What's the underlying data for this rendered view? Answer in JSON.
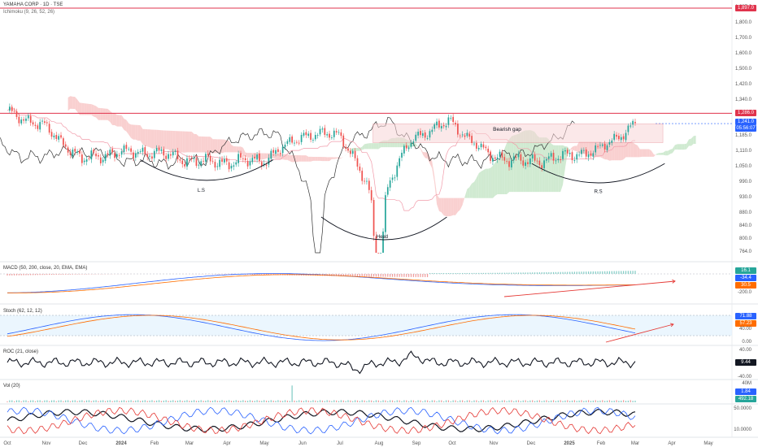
{
  "header": {
    "title": "YAMAHA CORP · 1D · TSE",
    "indicator": "Ichimoku (9, 26, 52, 26)"
  },
  "colors": {
    "up": "#26a69a",
    "down": "#ef5350",
    "resistance": "#e0334c",
    "cloud_bull": "#c8e6c9",
    "cloud_bear": "#f8c8c8",
    "gap_fill": "#f9d6d8"
  },
  "price_pane": {
    "y_ticks": [
      "1,897.0",
      "1,800.0",
      "1,700.0",
      "1,600.0",
      "1,500.0",
      "1,420.0",
      "1,340.0",
      "1,185.0",
      "1,110.0",
      "1,050.0",
      "990.0",
      "930.0",
      "880.0",
      "840.0",
      "800.0",
      "764.0"
    ],
    "price_tags": {
      "top_line": "1,897.0",
      "resistance": "1,286.0",
      "last": "1,241.0",
      "countdown": "05:56:07"
    },
    "annotations": {
      "gap": "Bearish gap",
      "left_shoulder": "L.S",
      "head": "Head",
      "right_shoulder": "R.S"
    }
  },
  "macd": {
    "title": "MACD (50, 200, close, 20, EMA, EMA)",
    "tags": [
      "16.1",
      "-34.4",
      "30.5"
    ],
    "ticks": [
      "-200.0"
    ]
  },
  "stoch": {
    "title": "Stoch (62, 12, 12)",
    "tags": [
      "71.88",
      "57.23"
    ],
    "ticks": [
      "40.00",
      "0.00"
    ]
  },
  "roc": {
    "title": "ROC (21, close)",
    "tags": [
      "9.44"
    ],
    "ticks": [
      "40.00",
      "-40.00"
    ]
  },
  "vol": {
    "title": "Vol (20)",
    "tags": [
      "1.84",
      "492.18"
    ],
    "ticks": [
      "40M"
    ]
  },
  "bottom": {
    "ticks": [
      "50.0000",
      "10.0000"
    ]
  },
  "x_axis": [
    "Oct",
    "Nov",
    "Dec",
    "2024",
    "Feb",
    "Mar",
    "Apr",
    "May",
    "Jun",
    "Jul",
    "Aug",
    "Sep",
    "Oct",
    "Nov",
    "Dec",
    "2025",
    "Feb",
    "Mar",
    "Apr",
    "May"
  ],
  "chart_data": {
    "type": "line",
    "title": "YAMAHA CORP · 1D · TSE",
    "x": [
      "Oct",
      "Nov",
      "Dec",
      "2024",
      "Feb",
      "Mar",
      "Apr",
      "May",
      "Jun",
      "Jul",
      "Aug",
      "Sep",
      "Oct",
      "Nov",
      "Dec",
      "2025",
      "Feb",
      "Mar"
    ],
    "series": [
      {
        "values": [
          1290,
          1230,
          1080,
          1110,
          1110,
          1075,
          1070,
          1080,
          1190,
          1195,
          900,
          1180,
          1250,
          1100,
          1070,
          1090,
          1120,
          1241
        ]
      }
    ],
    "ylim": [
      764,
      1897
    ]
  }
}
